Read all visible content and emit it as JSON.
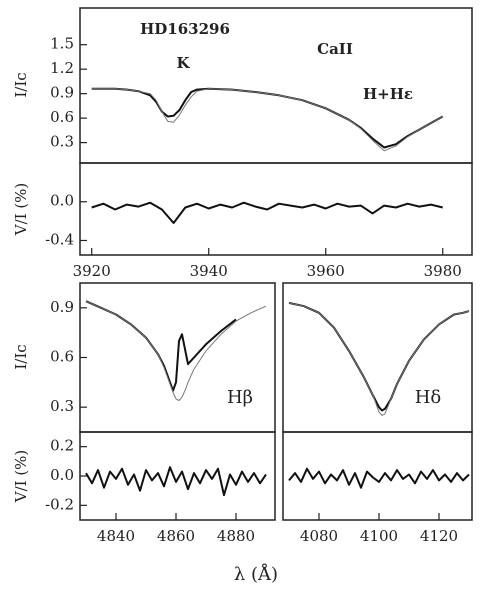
{
  "xlabel": "λ (Å)",
  "chart_data": [
    {
      "type": "line",
      "title": "HD163296",
      "ylabel": "I/Ic",
      "annotations": [
        "K",
        "CaII",
        "H+Hε"
      ],
      "xlim": [
        3918,
        3985
      ],
      "ylim": [
        0.05,
        1.95
      ],
      "yticks": [
        0.3,
        0.6,
        0.9,
        1.2,
        1.5
      ],
      "x": [
        3920,
        3922,
        3924,
        3926,
        3928,
        3930,
        3931,
        3932,
        3933,
        3934,
        3935,
        3936,
        3937,
        3938,
        3940,
        3944,
        3948,
        3952,
        3956,
        3960,
        3964,
        3966,
        3968,
        3970,
        3972,
        3974,
        3976,
        3978,
        3980
      ],
      "series": [
        {
          "color": "#111111",
          "values": [
            0.96,
            0.96,
            0.96,
            0.95,
            0.93,
            0.88,
            0.8,
            0.68,
            0.62,
            0.63,
            0.7,
            0.82,
            0.92,
            0.95,
            0.96,
            0.95,
            0.92,
            0.88,
            0.82,
            0.72,
            0.58,
            0.48,
            0.35,
            0.24,
            0.28,
            0.38,
            0.46,
            0.54,
            0.62
          ]
        },
        {
          "color": "#777777",
          "values": [
            0.96,
            0.96,
            0.96,
            0.95,
            0.93,
            0.9,
            0.82,
            0.68,
            0.56,
            0.55,
            0.64,
            0.76,
            0.86,
            0.93,
            0.96,
            0.95,
            0.92,
            0.88,
            0.82,
            0.72,
            0.58,
            0.47,
            0.33,
            0.2,
            0.26,
            0.37,
            0.46,
            0.54,
            0.62
          ]
        }
      ]
    },
    {
      "type": "line",
      "ylabel": "V/I (%)",
      "xlim": [
        3918,
        3985
      ],
      "ylim": [
        -0.55,
        0.4
      ],
      "yticks": [
        {
          "value": 0,
          "label": "0.0"
        },
        -0.4
      ],
      "xticks": [
        3920,
        3940,
        3960,
        3980
      ],
      "x": [
        3920,
        3922,
        3924,
        3926,
        3928,
        3930,
        3932,
        3934,
        3936,
        3938,
        3940,
        3942,
        3944,
        3946,
        3948,
        3950,
        3952,
        3954,
        3956,
        3958,
        3960,
        3962,
        3964,
        3966,
        3968,
        3970,
        3972,
        3974,
        3976,
        3978,
        3980
      ],
      "series": [
        {
          "color": "#111111",
          "values": [
            -0.06,
            -0.02,
            -0.08,
            -0.03,
            -0.05,
            -0.01,
            -0.08,
            -0.22,
            -0.06,
            -0.02,
            -0.07,
            -0.03,
            -0.06,
            -0.01,
            -0.05,
            -0.08,
            -0.02,
            -0.04,
            -0.06,
            -0.03,
            -0.07,
            -0.02,
            -0.05,
            -0.04,
            -0.12,
            -0.04,
            -0.06,
            -0.02,
            -0.05,
            -0.03,
            -0.06
          ]
        }
      ]
    },
    {
      "type": "line",
      "ylabel": "I/Ic",
      "annotations": [
        "Hβ"
      ],
      "xlim": [
        4828,
        4893
      ],
      "ylim": [
        0.15,
        1.05
      ],
      "yticks": [
        0.3,
        0.6,
        0.9
      ],
      "x": [
        4830,
        4835,
        4840,
        4845,
        4850,
        4854,
        4856,
        4858,
        4859,
        4860,
        4861,
        4862,
        4863,
        4864,
        4866,
        4870,
        4875,
        4880,
        4885,
        4890
      ],
      "series": [
        {
          "color": "#111111",
          "values": [
            0.94,
            0.9,
            0.86,
            0.8,
            0.72,
            0.62,
            0.55,
            0.45,
            0.4,
            0.45,
            0.7,
            0.74,
            0.65,
            0.56,
            0.6,
            0.68,
            0.76,
            0.83,
            null,
            null
          ]
        },
        {
          "color": "#777777",
          "values": [
            0.94,
            0.9,
            0.86,
            0.8,
            0.72,
            0.62,
            0.54,
            0.44,
            0.39,
            0.35,
            0.34,
            0.36,
            0.4,
            0.45,
            0.53,
            0.64,
            0.74,
            0.82,
            0.87,
            0.91
          ]
        }
      ]
    },
    {
      "type": "line",
      "annotations": [
        "Hδ"
      ],
      "xlim": [
        4068,
        4131
      ],
      "ylim": [
        0.15,
        1.05
      ],
      "x": [
        4070,
        4075,
        4080,
        4085,
        4090,
        4095,
        4098,
        4100,
        4101,
        4102,
        4104,
        4106,
        4110,
        4115,
        4120,
        4125,
        4128,
        4130
      ],
      "series": [
        {
          "color": "#111111",
          "values": [
            0.93,
            0.91,
            0.87,
            0.78,
            0.64,
            0.48,
            0.37,
            0.3,
            0.28,
            0.29,
            0.35,
            0.44,
            0.58,
            0.71,
            0.8,
            0.86,
            0.87,
            0.88
          ]
        },
        {
          "color": "#777777",
          "values": [
            0.93,
            0.91,
            0.87,
            0.78,
            0.64,
            0.48,
            0.37,
            0.27,
            0.25,
            0.26,
            0.35,
            0.44,
            0.58,
            0.71,
            0.8,
            0.86,
            0.87,
            0.88
          ]
        }
      ]
    },
    {
      "type": "line",
      "ylabel": "V/I (%)",
      "xlim": [
        4828,
        4893
      ],
      "ylim": [
        -0.3,
        0.3
      ],
      "yticks": [
        0.2,
        {
          "value": 0,
          "label": "0.0"
        },
        -0.2
      ],
      "xticks": [
        4840,
        4860,
        4880
      ],
      "x": [
        4830,
        4832,
        4834,
        4836,
        4838,
        4840,
        4842,
        4844,
        4846,
        4848,
        4850,
        4852,
        4854,
        4856,
        4858,
        4860,
        4862,
        4864,
        4866,
        4868,
        4870,
        4872,
        4874,
        4876,
        4878,
        4880,
        4882,
        4884,
        4886,
        4888,
        4890
      ],
      "series": [
        {
          "color": "#111111",
          "values": [
            0.02,
            -0.05,
            0.04,
            -0.08,
            0.03,
            -0.02,
            0.05,
            -0.06,
            0.01,
            -0.1,
            0.04,
            -0.03,
            0.02,
            -0.07,
            0.06,
            -0.04,
            0.03,
            -0.09,
            0.02,
            -0.05,
            0.04,
            -0.02,
            0.05,
            -0.13,
            0.01,
            -0.06,
            0.03,
            -0.04,
            0.02,
            -0.05,
            0.01
          ]
        }
      ]
    },
    {
      "type": "line",
      "xlim": [
        4068,
        4131
      ],
      "ylim": [
        -0.3,
        0.3
      ],
      "xticks": [
        4080,
        4100,
        4120
      ],
      "x": [
        4070,
        4072,
        4074,
        4076,
        4078,
        4080,
        4082,
        4084,
        4086,
        4088,
        4090,
        4092,
        4094,
        4096,
        4098,
        4100,
        4102,
        4104,
        4106,
        4108,
        4110,
        4112,
        4114,
        4116,
        4118,
        4120,
        4122,
        4124,
        4126,
        4128,
        4130
      ],
      "series": [
        {
          "color": "#111111",
          "values": [
            -0.03,
            0.02,
            -0.04,
            0.05,
            -0.02,
            0.03,
            -0.05,
            0.01,
            -0.03,
            0.04,
            -0.06,
            0.02,
            -0.08,
            0.03,
            -0.01,
            -0.04,
            0.02,
            -0.03,
            0.04,
            -0.02,
            0.01,
            -0.05,
            0.03,
            -0.02,
            0.04,
            -0.03,
            0.01,
            -0.04,
            0.02,
            -0.03,
            0.01
          ]
        }
      ]
    }
  ]
}
